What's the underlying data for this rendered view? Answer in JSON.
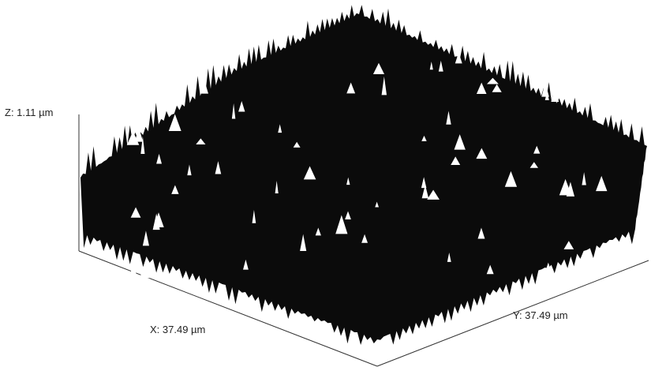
{
  "labels": {
    "z": "Z: 1.11 µm",
    "x": "X: 37.49 µm",
    "y": "Y: 37.49 µm"
  }
}
